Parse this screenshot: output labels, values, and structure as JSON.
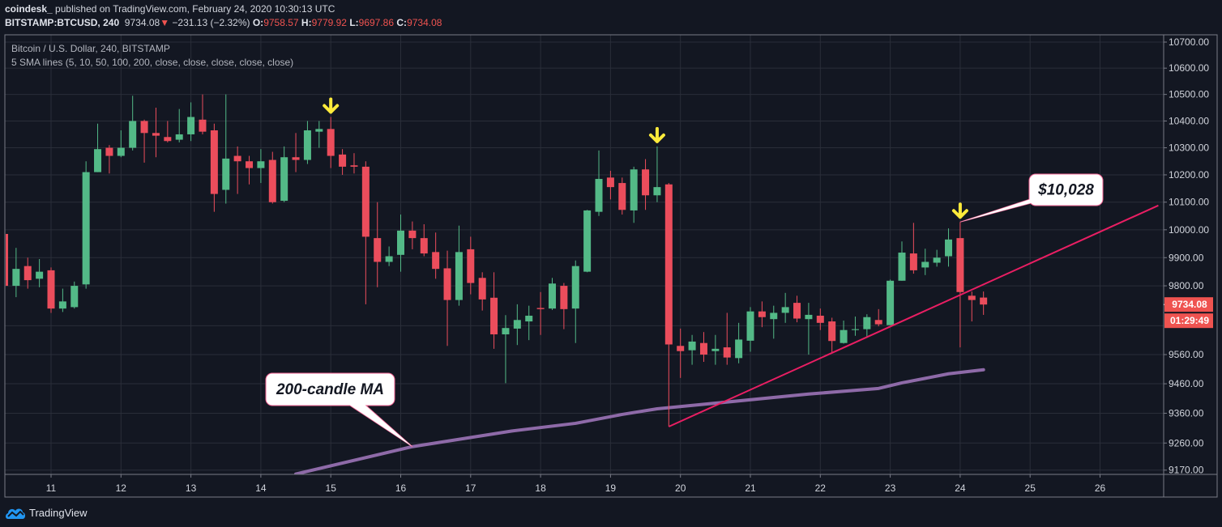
{
  "header": {
    "publisher": "coindesk_",
    "published_text": "published on TradingView.com, February 24, 2020 10:30:13 UTC",
    "symbol": "BITSTAMP:BTCUSD, 240",
    "last": "9734.08",
    "change": "−231.13 (−2.32%)",
    "change_direction": "down",
    "o_label": "O:",
    "o": "9758.57",
    "h_label": "H:",
    "h": "9779.92",
    "l_label": "L:",
    "l": "9697.86",
    "c_label": "C:",
    "c": "9734.08"
  },
  "legend": {
    "title": "Bitcoin / U.S. Dollar, 240, BITSTAMP",
    "indicator": "5 SMA lines (5, 10, 50, 100, 200, close, close, close, close, close)"
  },
  "brand": {
    "name": "TradingView",
    "icon": "tradingview-cloud-icon",
    "color": "#2196f3"
  },
  "chart_data": {
    "type": "candlestick",
    "interval": "240",
    "y_scale": "log",
    "ylim": [
      9150,
      10720
    ],
    "grid": true,
    "y_ticks": [
      "10700.00",
      "10600.00",
      "10500.00",
      "10400.00",
      "10300.00",
      "10200.00",
      "10100.00",
      "10000.00",
      "9900.00",
      "9800.00",
      "9560.00",
      "9460.00",
      "9360.00",
      "9260.00",
      "9170.00"
    ],
    "y_grid_unlabeled": [
      9660
    ],
    "x_ticks": [
      {
        "t": "2020-02-11",
        "label": "11"
      },
      {
        "t": "2020-02-12",
        "label": "12"
      },
      {
        "t": "2020-02-13",
        "label": "13"
      },
      {
        "t": "2020-02-14",
        "label": "14"
      },
      {
        "t": "2020-02-15",
        "label": "15"
      },
      {
        "t": "2020-02-16",
        "label": "16"
      },
      {
        "t": "2020-02-17",
        "label": "17"
      },
      {
        "t": "2020-02-18",
        "label": "18"
      },
      {
        "t": "2020-02-19",
        "label": "19"
      },
      {
        "t": "2020-02-20",
        "label": "20"
      },
      {
        "t": "2020-02-21",
        "label": "21"
      },
      {
        "t": "2020-02-22",
        "label": "22"
      },
      {
        "t": "2020-02-23",
        "label": "23"
      },
      {
        "t": "2020-02-24",
        "label": "24"
      },
      {
        "t": "2020-02-25",
        "label": "25"
      },
      {
        "t": "2020-02-26",
        "label": "26"
      }
    ],
    "colors": {
      "up": "#53b987",
      "down": "#eb4d5c",
      "ma": "#8e6aa8",
      "trendline": "#e91e63",
      "arrow": "#ffeb3b",
      "grid": "#2a2e39",
      "background": "#131722"
    },
    "candles_columns": [
      "time",
      "open",
      "high",
      "low",
      "close"
    ],
    "candles": [
      [
        "2020-02-10 08:00",
        9985,
        9985,
        9800,
        9800
      ],
      [
        "2020-02-10 12:00",
        9800,
        9935,
        9760,
        9860
      ],
      [
        "2020-02-10 16:00",
        9870,
        9900,
        9790,
        9820
      ],
      [
        "2020-02-10 20:00",
        9825,
        9895,
        9795,
        9850
      ],
      [
        "2020-02-11 00:00",
        9855,
        9865,
        9705,
        9720
      ],
      [
        "2020-02-11 04:00",
        9720,
        9790,
        9708,
        9745
      ],
      [
        "2020-02-11 08:00",
        9725,
        9815,
        9720,
        9800
      ],
      [
        "2020-02-11 12:00",
        9805,
        10250,
        9790,
        10210
      ],
      [
        "2020-02-11 16:00",
        10210,
        10390,
        10210,
        10295
      ],
      [
        "2020-02-11 20:00",
        10300,
        10310,
        10205,
        10270
      ],
      [
        "2020-02-12 00:00",
        10270,
        10365,
        10265,
        10300
      ],
      [
        "2020-02-12 04:00",
        10300,
        10495,
        10290,
        10400
      ],
      [
        "2020-02-12 08:00",
        10400,
        10405,
        10245,
        10355
      ],
      [
        "2020-02-12 12:00",
        10355,
        10450,
        10265,
        10345
      ],
      [
        "2020-02-12 16:00",
        10340,
        10400,
        10320,
        10325
      ],
      [
        "2020-02-12 20:00",
        10330,
        10445,
        10320,
        10350
      ],
      [
        "2020-02-13 00:00",
        10350,
        10470,
        10325,
        10415
      ],
      [
        "2020-02-13 04:00",
        10405,
        10500,
        10350,
        10360
      ],
      [
        "2020-02-13 08:00",
        10365,
        10390,
        10065,
        10130
      ],
      [
        "2020-02-13 12:00",
        10145,
        10500,
        10095,
        10260
      ],
      [
        "2020-02-13 16:00",
        10270,
        10305,
        10130,
        10250
      ],
      [
        "2020-02-13 20:00",
        10250,
        10270,
        10165,
        10225
      ],
      [
        "2020-02-14 00:00",
        10225,
        10295,
        10170,
        10250
      ],
      [
        "2020-02-14 04:00",
        10255,
        10285,
        10095,
        10100
      ],
      [
        "2020-02-14 08:00",
        10105,
        10305,
        10100,
        10265
      ],
      [
        "2020-02-14 12:00",
        10265,
        10355,
        10210,
        10255
      ],
      [
        "2020-02-14 16:00",
        10255,
        10400,
        10240,
        10365
      ],
      [
        "2020-02-14 20:00",
        10360,
        10400,
        10300,
        10370
      ],
      [
        "2020-02-15 00:00",
        10370,
        10415,
        10225,
        10270
      ],
      [
        "2020-02-15 04:00",
        10275,
        10295,
        10200,
        10230
      ],
      [
        "2020-02-15 08:00",
        10235,
        10280,
        10205,
        10230
      ],
      [
        "2020-02-15 12:00",
        10230,
        10250,
        9735,
        9975
      ],
      [
        "2020-02-15 16:00",
        9970,
        10100,
        9795,
        9885
      ],
      [
        "2020-02-15 20:00",
        9885,
        9940,
        9870,
        9905
      ],
      [
        "2020-02-16 00:00",
        9910,
        10055,
        9850,
        9997
      ],
      [
        "2020-02-16 04:00",
        9997,
        10030,
        9930,
        9970
      ],
      [
        "2020-02-16 08:00",
        9970,
        10020,
        9905,
        9915
      ],
      [
        "2020-02-16 12:00",
        9920,
        9990,
        9825,
        9860
      ],
      [
        "2020-02-16 16:00",
        9862,
        9925,
        9590,
        9750
      ],
      [
        "2020-02-16 20:00",
        9750,
        10015,
        9730,
        9920
      ],
      [
        "2020-02-17 00:00",
        9930,
        9975,
        9770,
        9810
      ],
      [
        "2020-02-17 04:00",
        9828,
        9848,
        9713,
        9752
      ],
      [
        "2020-02-17 08:00",
        9758,
        9848,
        9580,
        9630
      ],
      [
        "2020-02-17 12:00",
        9630,
        9697,
        9462,
        9652
      ],
      [
        "2020-02-17 16:00",
        9650,
        9735,
        9593,
        9680
      ],
      [
        "2020-02-17 20:00",
        9675,
        9730,
        9610,
        9695
      ],
      [
        "2020-02-18 00:00",
        9722,
        9778,
        9628,
        9718
      ],
      [
        "2020-02-18 04:00",
        9720,
        9828,
        9715,
        9808
      ],
      [
        "2020-02-18 08:00",
        9800,
        9810,
        9648,
        9718
      ],
      [
        "2020-02-18 12:00",
        9720,
        9890,
        9600,
        9870
      ],
      [
        "2020-02-18 16:00",
        9850,
        10072,
        9848,
        10070
      ],
      [
        "2020-02-18 20:00",
        10065,
        10290,
        10050,
        10185
      ],
      [
        "2020-02-19 00:00",
        10190,
        10215,
        10110,
        10155
      ],
      [
        "2020-02-19 04:00",
        10170,
        10190,
        10055,
        10072
      ],
      [
        "2020-02-19 08:00",
        10070,
        10230,
        10025,
        10220
      ],
      [
        "2020-02-19 12:00",
        10220,
        10258,
        10072,
        10125
      ],
      [
        "2020-02-19 16:00",
        10125,
        10305,
        10100,
        10155
      ],
      [
        "2020-02-19 20:00",
        10165,
        10170,
        9315,
        9595
      ],
      [
        "2020-02-20 00:00",
        9590,
        9650,
        9480,
        9572
      ],
      [
        "2020-02-20 04:00",
        9575,
        9628,
        9525,
        9605
      ],
      [
        "2020-02-20 08:00",
        9600,
        9638,
        9535,
        9560
      ],
      [
        "2020-02-20 12:00",
        9572,
        9628,
        9525,
        9580
      ],
      [
        "2020-02-20 16:00",
        9585,
        9705,
        9525,
        9550
      ],
      [
        "2020-02-20 20:00",
        9548,
        9670,
        9530,
        9612
      ],
      [
        "2020-02-21 00:00",
        9608,
        9725,
        9570,
        9710
      ],
      [
        "2020-02-21 04:00",
        9710,
        9745,
        9655,
        9690
      ],
      [
        "2020-02-21 08:00",
        9683,
        9730,
        9615,
        9705
      ],
      [
        "2020-02-21 12:00",
        9705,
        9775,
        9670,
        9725
      ],
      [
        "2020-02-21 16:00",
        9740,
        9765,
        9672,
        9685
      ],
      [
        "2020-02-21 20:00",
        9683,
        9740,
        9560,
        9698
      ],
      [
        "2020-02-22 00:00",
        9695,
        9720,
        9645,
        9670
      ],
      [
        "2020-02-22 04:00",
        9675,
        9688,
        9565,
        9607
      ],
      [
        "2020-02-22 08:00",
        9600,
        9678,
        9598,
        9645
      ],
      [
        "2020-02-22 12:00",
        9645,
        9692,
        9625,
        9648
      ],
      [
        "2020-02-22 16:00",
        9648,
        9700,
        9618,
        9690
      ],
      [
        "2020-02-22 20:00",
        9680,
        9718,
        9658,
        9665
      ],
      [
        "2020-02-23 00:00",
        9662,
        9822,
        9662,
        9818
      ],
      [
        "2020-02-23 04:00",
        9818,
        9958,
        9818,
        9918
      ],
      [
        "2020-02-23 08:00",
        9915,
        10025,
        9843,
        9855
      ],
      [
        "2020-02-23 12:00",
        9865,
        9932,
        9838,
        9885
      ],
      [
        "2020-02-23 16:00",
        9882,
        9928,
        9868,
        9900
      ],
      [
        "2020-02-23 20:00",
        9905,
        10005,
        9868,
        9965
      ],
      [
        "2020-02-24 00:00",
        9970,
        10028,
        9585,
        9778
      ],
      [
        "2020-02-24 04:00",
        9765,
        9780,
        9675,
        9750
      ],
      [
        "2020-02-24 08:00",
        9758.57,
        9779.92,
        9697.86,
        9734.08
      ]
    ],
    "ma_200": [
      [
        "2020-02-14 12:00",
        9157
      ],
      [
        "2020-02-16 04:00",
        9248
      ],
      [
        "2020-02-17 14:00",
        9300
      ],
      [
        "2020-02-18 12:00",
        9326
      ],
      [
        "2020-02-19 04:00",
        9356
      ],
      [
        "2020-02-19 16:00",
        9375
      ],
      [
        "2020-02-20 12:00",
        9394
      ],
      [
        "2020-02-21 20:00",
        9425
      ],
      [
        "2020-02-22 20:00",
        9444
      ],
      [
        "2020-02-23 04:00",
        9463
      ],
      [
        "2020-02-23 20:00",
        9494
      ],
      [
        "2020-02-24 08:00",
        9508
      ]
    ],
    "trendline": [
      [
        "2020-02-19 20:00",
        9315
      ],
      [
        "2020-02-26 20:00",
        10088
      ]
    ],
    "arrows": [
      "2020-02-15 00:00",
      "2020-02-19 16:00",
      "2020-02-24 00:00"
    ],
    "annotations": [
      {
        "text": "$10,028",
        "point": [
          "2020-02-24 00:00",
          10028
        ]
      },
      {
        "text": "200-candle MA",
        "point": [
          "2020-02-16 04:00",
          9248
        ]
      }
    ],
    "last_price_label": "9734.08",
    "countdown_label": "01:29:49"
  }
}
